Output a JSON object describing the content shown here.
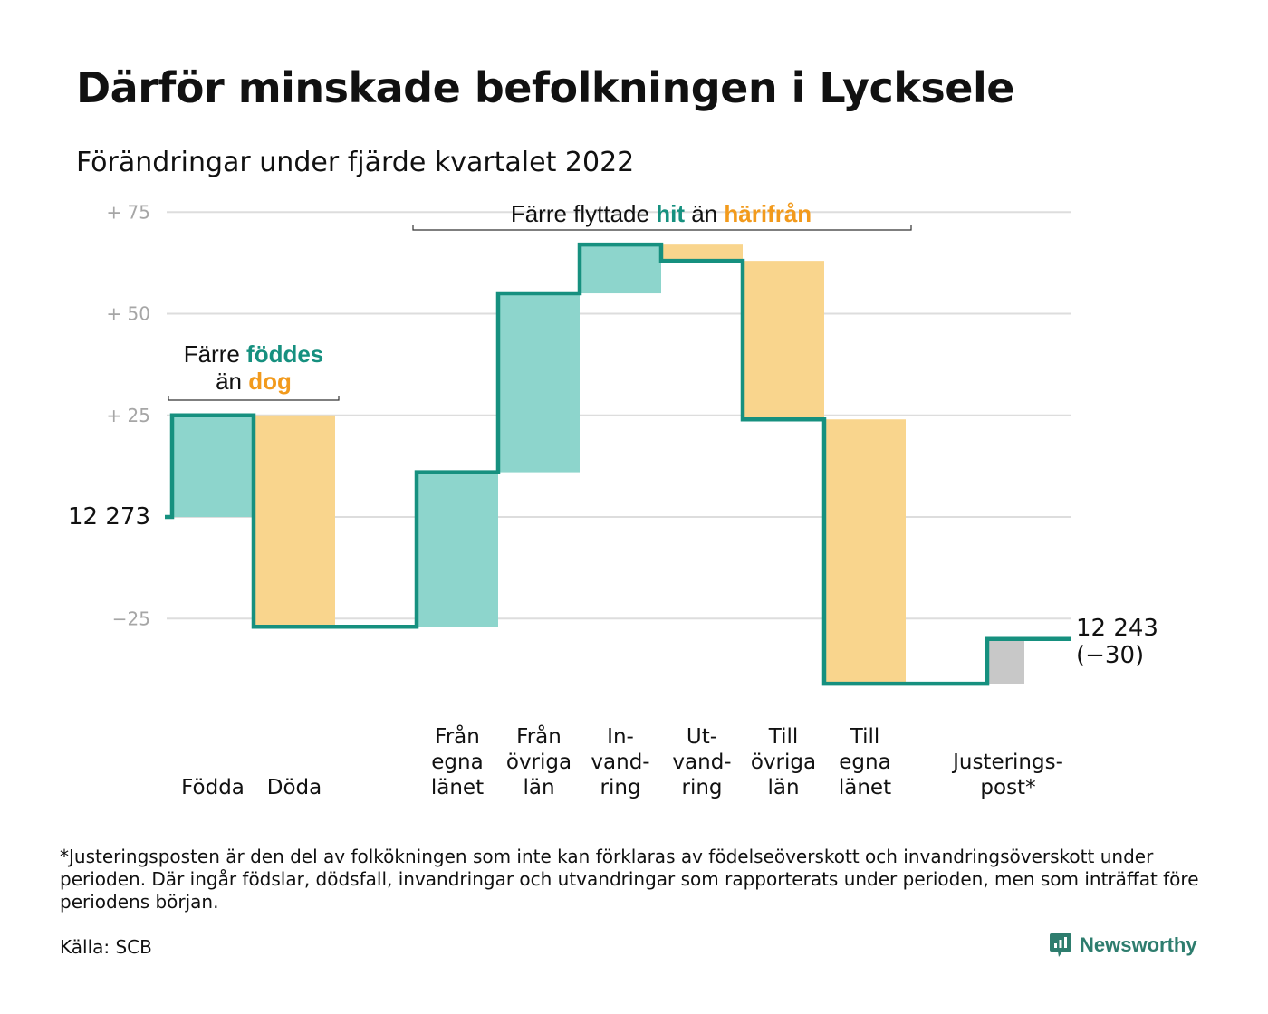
{
  "title": "Därför minskade befolkningen i Lycksele",
  "subtitle": "Förändringar under fjärde kvartalet 2022",
  "chart_data": {
    "type": "waterfall",
    "start_value": 12273,
    "start_label": "12 273",
    "end_label": [
      "12 243",
      "(−30)"
    ],
    "y_ticks": [
      {
        "value": 75,
        "label": "+ 75"
      },
      {
        "value": 50,
        "label": "+ 50"
      },
      {
        "value": 25,
        "label": "+ 25"
      },
      {
        "value": 0,
        "label": ""
      },
      {
        "value": -25,
        "label": "−25"
      }
    ],
    "ylim": [
      -40,
      78
    ],
    "grid": true,
    "steps": [
      {
        "label": [
          "Födda"
        ],
        "change": 25,
        "kind": "in"
      },
      {
        "label": [
          "Döda"
        ],
        "change": -52,
        "kind": "out"
      },
      {
        "label": [],
        "change": 0,
        "kind": "gap"
      },
      {
        "label": [
          "Från",
          "egna",
          "länet"
        ],
        "change": 38,
        "kind": "in"
      },
      {
        "label": [
          "Från",
          "övriga",
          "län"
        ],
        "change": 44,
        "kind": "in"
      },
      {
        "label": [
          "In-",
          "vand-",
          "ring"
        ],
        "change": 12,
        "kind": "in"
      },
      {
        "label": [
          "Ut-",
          "vand-",
          "ring"
        ],
        "change": -4,
        "kind": "out"
      },
      {
        "label": [
          "Till",
          "övriga",
          "län"
        ],
        "change": -39,
        "kind": "out"
      },
      {
        "label": [
          "Till",
          "egna",
          "länet"
        ],
        "change": -65,
        "kind": "out"
      },
      {
        "label": [],
        "change": 0,
        "kind": "gap"
      },
      {
        "label": [
          "Justerings-",
          "post*"
        ],
        "change": 11,
        "kind": "adjust"
      }
    ],
    "annotations": [
      {
        "parts": [
          {
            "text": "Färre ",
            "color": "#111111"
          },
          {
            "text": "föddes",
            "color": "#16907f"
          }
        ],
        "line2": [
          {
            "text": "än ",
            "color": "#111111"
          },
          {
            "text": "dog",
            "color": "#f29a1c"
          }
        ]
      },
      {
        "parts": [
          {
            "text": "Färre flyttade ",
            "color": "#111111"
          },
          {
            "text": "hit",
            "color": "#16907f"
          },
          {
            "text": " än ",
            "color": "#111111"
          },
          {
            "text": "härifrån",
            "color": "#f29a1c"
          }
        ]
      }
    ],
    "colors": {
      "in": "#8dd5cc",
      "out": "#f9d58d",
      "adjust": "#c8c8c8",
      "line": "#16907f",
      "grid": "#dddddd"
    }
  },
  "footnote": "*Justeringsposten är den del av folkökningen som inte kan förklaras av födelseöverskott och invandringsöverskott under perioden. Där ingår födslar, dödsfall, invandringar och utvandringar som rapporterats under perioden, men som inträffat före periodens början.",
  "source": "Källa: SCB",
  "brand": {
    "name": "Newsworthy",
    "icon": "bar-chart-speech-bubble-icon"
  }
}
